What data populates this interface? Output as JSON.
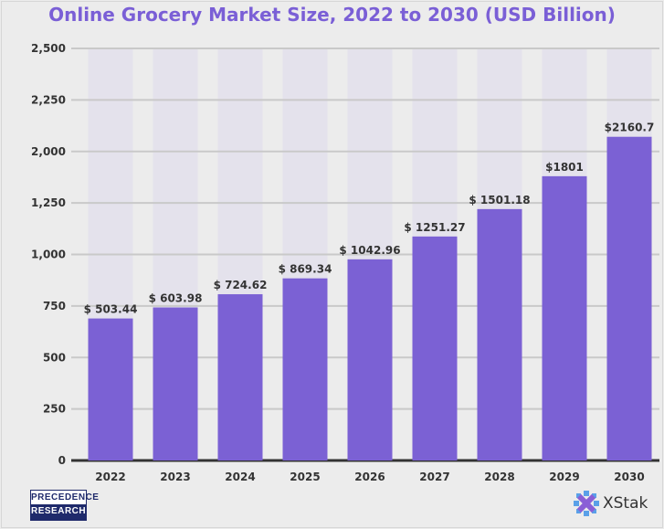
{
  "chart_data": {
    "type": "bar",
    "title": "Online Grocery Market Size, 2022 to 2030 (USD Billion)",
    "categories": [
      "2022",
      "2023",
      "2024",
      "2025",
      "2026",
      "2027",
      "2028",
      "2029",
      "2030"
    ],
    "values": [
      503.44,
      603.98,
      724.62,
      869.34,
      1042.96,
      1251.27,
      1501.18,
      1801,
      2160.7
    ],
    "data_labels": [
      "$ 503.44",
      "$ 603.98",
      "$ 724.62",
      "$ 869.34",
      "$ 1042.96",
      "$ 1251.27",
      "$ 1501.18",
      "$1801",
      "$2160.7"
    ],
    "y_tick_labels": [
      "0",
      "250",
      "500",
      "750",
      "1,000",
      "1,250",
      "2,000",
      "2,250",
      "2,500"
    ],
    "xlabel": "",
    "ylabel": "",
    "grid": true,
    "bar_color": "#7b61d4",
    "title_color": "#7a5fd6"
  },
  "logos": {
    "left": [
      "PRECEDENCE",
      "RESEARCH"
    ],
    "right": "XStak"
  }
}
